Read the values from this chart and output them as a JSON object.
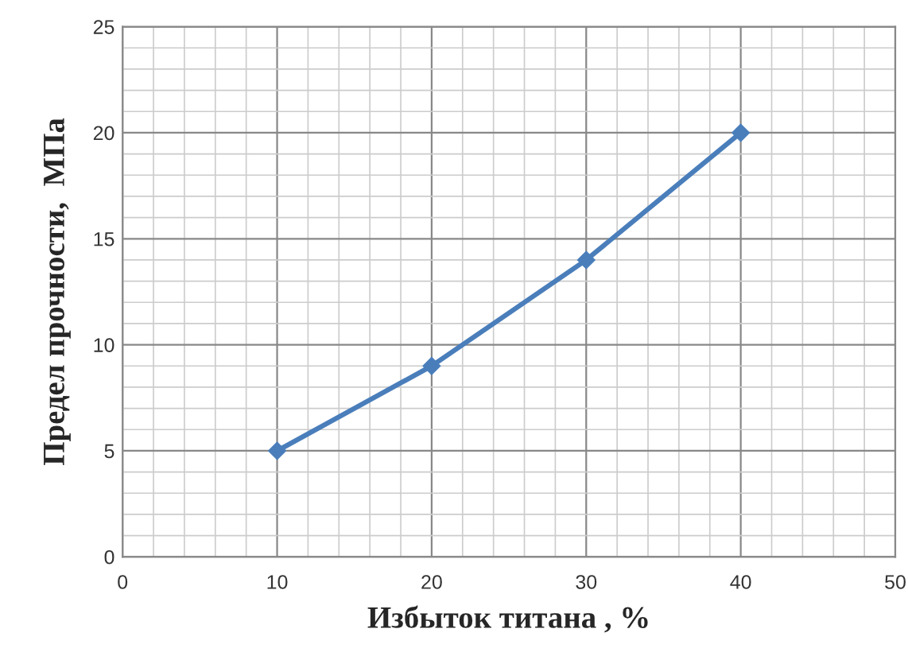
{
  "chart_data": {
    "type": "line",
    "xlabel": "Избыток титана , %",
    "ylabel": "Предел прочности,  МПа",
    "x": [
      10,
      20,
      30,
      40
    ],
    "series": [
      {
        "color": "#4a7ebb",
        "values": [
          5,
          9,
          14,
          20
        ]
      }
    ],
    "xlim": [
      0,
      50
    ],
    "xticks": [
      0,
      10,
      20,
      30,
      40,
      50
    ],
    "ylim": [
      0,
      25
    ],
    "yticks": [
      0,
      5,
      10,
      15,
      20,
      25
    ],
    "grid": true,
    "marker": "diamond",
    "line_style": "solid",
    "legend": false
  }
}
